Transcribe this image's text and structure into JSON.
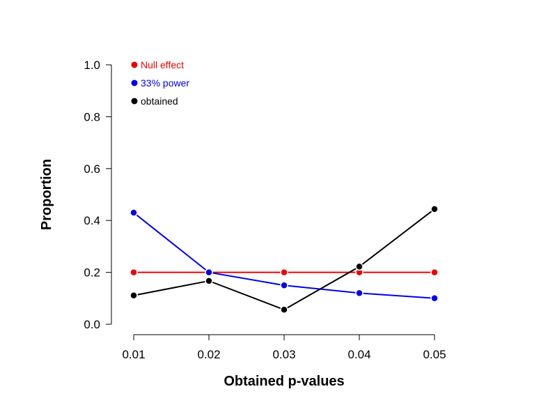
{
  "chart_data": {
    "type": "line",
    "xlabel": "Obtained p-values",
    "ylabel": "Proportion",
    "x": [
      0.01,
      0.02,
      0.03,
      0.04,
      0.05
    ],
    "x_tick_labels": [
      "0.01",
      "0.02",
      "0.03",
      "0.04",
      "0.05"
    ],
    "y_tick_labels": [
      "0.0",
      "0.2",
      "0.4",
      "0.6",
      "0.8",
      "1.0"
    ],
    "y_ticks": [
      0.0,
      0.2,
      0.4,
      0.6,
      0.8,
      1.0
    ],
    "ylim": [
      0,
      1
    ],
    "grid": false,
    "legend_position": "top-left",
    "series": [
      {
        "name": "Null effect",
        "color": "#ee0000",
        "values": [
          0.2,
          0.2,
          0.2,
          0.2,
          0.2
        ]
      },
      {
        "name": "33% power",
        "color": "#0000ee",
        "values": [
          0.43,
          0.2,
          0.15,
          0.12,
          0.1
        ]
      },
      {
        "name": "obtained",
        "color": "#000000",
        "values": [
          0.111,
          0.167,
          0.056,
          0.222,
          0.444
        ]
      }
    ]
  }
}
